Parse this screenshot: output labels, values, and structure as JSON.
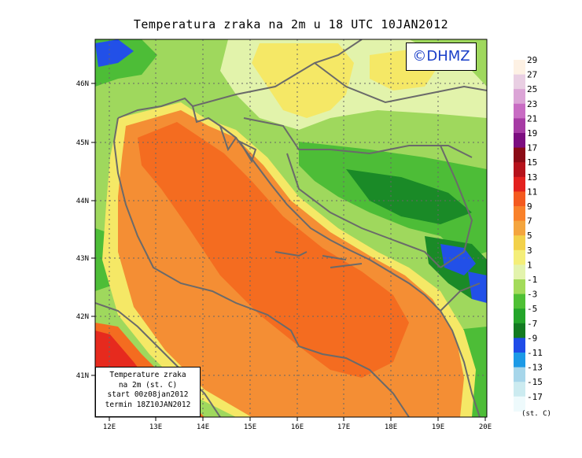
{
  "title": "Temperatura zraka na 2m u 18 UTC 10JAN2012",
  "logo": "©DHMZ",
  "info_box": {
    "line1": "Temperature zraka",
    "line2": "na 2m (st. C)",
    "line3": "start 00z08jan2012",
    "line4": "termin 18Z10JAN2012"
  },
  "axes": {
    "lon_labels": [
      "12E",
      "13E",
      "14E",
      "15E",
      "16E",
      "17E",
      "18E",
      "19E",
      "20E"
    ],
    "lat_labels": [
      "46N",
      "45N",
      "44N",
      "43N",
      "42N",
      "41N"
    ]
  },
  "legend": {
    "unit": "(st. C)",
    "labels": [
      "29",
      "27",
      "25",
      "23",
      "21",
      "19",
      "17",
      "15",
      "13",
      "11",
      "9",
      "7",
      "5",
      "3",
      "1",
      "-1",
      "-3",
      "-5",
      "-7",
      "-9",
      "-11",
      "-13",
      "-15",
      "-17"
    ],
    "colors": [
      "#fdf1e4",
      "#e9cfe3",
      "#dba4d6",
      "#c86cc3",
      "#a63ba4",
      "#7c0e80",
      "#8a0b16",
      "#b5121b",
      "#e3211e",
      "#f45a1f",
      "#f9812a",
      "#f4a53e",
      "#f2d14a",
      "#f4ee79",
      "#e3f3ad",
      "#a3db5a",
      "#4fc035",
      "#24a52a",
      "#137a21",
      "#1f4ce8",
      "#1c9ae6",
      "#a7d6ea",
      "#ccebf0",
      "#eefafc"
    ]
  },
  "palette": {
    "sea_orange": "#f46c20",
    "coast_orange": "#f48e34",
    "yellow": "#f5e866",
    "light_green": "#e2f3ab",
    "green": "#9fd85d",
    "mid_green": "#4dbd37",
    "dark_green": "#1a8a27",
    "blue": "#2250e8",
    "red": "#e62a1e",
    "border_gray": "#6a6a6a"
  }
}
